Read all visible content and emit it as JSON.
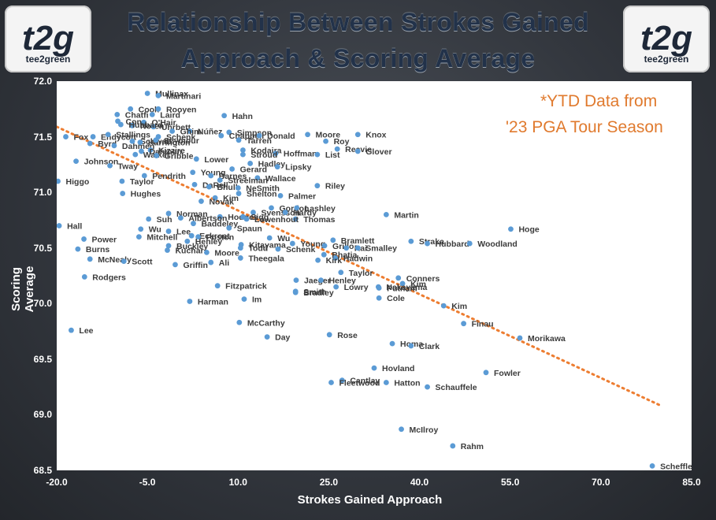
{
  "logo": {
    "mark": "t2g",
    "wordmark": "tee2green"
  },
  "title_line1": "Relationship Between Strokes Gained",
  "title_line2": "Approach & Scoring Average",
  "note_line1": "*YTD Data from",
  "note_line2": "'23 PGA Tour Season",
  "colors": {
    "point": "#5b9bd5",
    "trend": "#ed7d31",
    "note": "#e07a2e",
    "title": "#22324a"
  },
  "chart_data": {
    "type": "scatter",
    "title": "Relationship Between Strokes Gained Approach & Scoring Average",
    "xlabel": "Strokes Gained Approach",
    "ylabel": "Scoring Average",
    "xlim": [
      -20,
      85
    ],
    "ylim": [
      68.5,
      72.0
    ],
    "xticks": [
      "-20.0",
      "-5.0",
      "10.0",
      "25.0",
      "40.0",
      "55.0",
      "70.0",
      "85.0"
    ],
    "xtick_values": [
      -20,
      -5,
      10,
      25,
      40,
      55,
      70,
      85
    ],
    "yticks": [
      "72.0",
      "71.5",
      "71.0",
      "70.5",
      "70.0",
      "69.5",
      "69.0",
      "68.5"
    ],
    "ytick_values": [
      72.0,
      71.5,
      71.0,
      70.5,
      70.0,
      69.5,
      69.0,
      68.5
    ],
    "grid": false,
    "trendline": {
      "style": "dotted",
      "x": [
        -20,
        80
      ],
      "y": [
        71.59,
        69.08
      ]
    },
    "points": [
      {
        "label": "Mullinax",
        "x": -5.0,
        "y": 71.89
      },
      {
        "label": "Martinari",
        "x": -3.2,
        "y": 71.87
      },
      {
        "label": "Cook",
        "x": -7.8,
        "y": 71.75
      },
      {
        "label": "Rooyen",
        "x": -3.2,
        "y": 71.75
      },
      {
        "label": "Chatfi",
        "x": -10.0,
        "y": 71.7
      },
      {
        "label": "Laird",
        "x": -4.2,
        "y": 71.7
      },
      {
        "label": "Cone",
        "x": -9.9,
        "y": 71.64
      },
      {
        "label": "O'Hair",
        "x": -5.6,
        "y": 71.63
      },
      {
        "label": "Noren",
        "x": -7.5,
        "y": 71.6
      },
      {
        "label": "Uhrbett",
        "x": -4.0,
        "y": 71.59
      },
      {
        "label": "Núñez",
        "x": 2.0,
        "y": 71.55
      },
      {
        "label": "Hahn",
        "x": 7.7,
        "y": 71.69
      },
      {
        "label": "Simpson",
        "x": 8.5,
        "y": 71.54
      },
      {
        "label": "Chappell",
        "x": 7.2,
        "y": 71.51
      },
      {
        "label": "Donald",
        "x": 13.5,
        "y": 71.51
      },
      {
        "label": "Moore",
        "x": 21.5,
        "y": 71.52
      },
      {
        "label": "Knox",
        "x": 29.8,
        "y": 71.52
      },
      {
        "label": "Tarren",
        "x": 10.1,
        "y": 71.47
      },
      {
        "label": "Roy",
        "x": 24.5,
        "y": 71.46
      },
      {
        "label": "Reavie",
        "x": 26.4,
        "y": 71.39
      },
      {
        "label": "Kodaira",
        "x": 10.8,
        "y": 71.38
      },
      {
        "label": "Glover",
        "x": 29.8,
        "y": 71.37
      },
      {
        "label": "Hoffman",
        "x": 16.2,
        "y": 71.35
      },
      {
        "label": "List",
        "x": 23.1,
        "y": 71.34
      },
      {
        "label": "Stroud",
        "x": 10.8,
        "y": 71.34
      },
      {
        "label": "Lower",
        "x": 3.1,
        "y": 71.3
      },
      {
        "label": "Hadley",
        "x": 12.0,
        "y": 71.26
      },
      {
        "label": "Lipsky",
        "x": 16.5,
        "y": 71.23
      },
      {
        "label": "Gerard",
        "x": 9.0,
        "y": 71.21
      },
      {
        "label": "Young",
        "x": 2.5,
        "y": 71.18
      },
      {
        "label": "Barnes",
        "x": 5.5,
        "y": 71.15
      },
      {
        "label": "Wallace",
        "x": 13.2,
        "y": 71.13
      },
      {
        "label": "Streelman",
        "x": 7.0,
        "y": 71.11
      },
      {
        "label": "Riley",
        "x": 23.1,
        "y": 71.06
      },
      {
        "label": "DaRell",
        "x": 2.8,
        "y": 71.07
      },
      {
        "label": "Bhull",
        "x": 5.2,
        "y": 71.05
      },
      {
        "label": "NeSmith",
        "x": 10.0,
        "y": 71.04
      },
      {
        "label": "Shelton",
        "x": 10.1,
        "y": 70.99
      },
      {
        "label": "Palmer",
        "x": 17.0,
        "y": 70.97
      },
      {
        "label": "Kim",
        "x": 6.2,
        "y": 70.95
      },
      {
        "label": "Novak",
        "x": 3.9,
        "y": 70.92
      },
      {
        "label": "Gordon",
        "x": 15.5,
        "y": 70.86
      },
      {
        "label": "Lashley",
        "x": 19.7,
        "y": 70.86
      },
      {
        "label": "Svensson",
        "x": 12.5,
        "y": 70.82
      },
      {
        "label": "Hardy",
        "x": 17.8,
        "y": 70.82
      },
      {
        "label": "Martin",
        "x": 34.5,
        "y": 70.8
      },
      {
        "label": "Norman",
        "x": -1.5,
        "y": 70.81
      },
      {
        "label": "Thomas",
        "x": 19.5,
        "y": 70.76
      },
      {
        "label": "Hodges",
        "x": 7.0,
        "y": 70.78
      },
      {
        "label": "Sigg",
        "x": 10.8,
        "y": 70.78
      },
      {
        "label": "Lowenhout",
        "x": 11.4,
        "y": 70.76
      },
      {
        "label": "Suh",
        "x": -4.8,
        "y": 70.76
      },
      {
        "label": "Albertson",
        "x": 0.5,
        "y": 70.77
      },
      {
        "label": "Baddeley",
        "x": 2.6,
        "y": 70.72
      },
      {
        "label": "Spaun",
        "x": 8.5,
        "y": 70.68
      },
      {
        "label": "Hoge",
        "x": 55.1,
        "y": 70.67
      },
      {
        "label": "Wu",
        "x": -6.1,
        "y": 70.67
      },
      {
        "label": "Lee",
        "x": -1.5,
        "y": 70.65
      },
      {
        "label": "Eckroat",
        "x": 2.3,
        "y": 70.61
      },
      {
        "label": "Poston",
        "x": 3.4,
        "y": 70.6
      },
      {
        "label": "Mitchell",
        "x": -6.4,
        "y": 70.6
      },
      {
        "label": "Bramlett",
        "x": 25.7,
        "y": 70.57
      },
      {
        "label": "Straka",
        "x": 38.6,
        "y": 70.56
      },
      {
        "label": "Hubbard",
        "x": 41.3,
        "y": 70.54
      },
      {
        "label": "Woodland",
        "x": 48.3,
        "y": 70.54
      },
      {
        "label": "Power",
        "x": -15.5,
        "y": 70.58
      },
      {
        "label": "Henley",
        "x": 1.6,
        "y": 70.56
      },
      {
        "label": "Wu",
        "x": 15.2,
        "y": 70.59
      },
      {
        "label": "Young",
        "x": 19.0,
        "y": 70.54
      },
      {
        "label": "Kitayama",
        "x": 10.5,
        "y": 70.53
      },
      {
        "label": "Todd",
        "x": 10.4,
        "y": 70.5
      },
      {
        "label": "Buckley",
        "x": -1.5,
        "y": 70.52
      },
      {
        "label": "Grillo",
        "x": 24.3,
        "y": 70.52
      },
      {
        "label": "Rai",
        "x": 27.9,
        "y": 70.5
      },
      {
        "label": "Smalley",
        "x": 29.8,
        "y": 70.5
      },
      {
        "label": "Schenk",
        "x": 16.6,
        "y": 70.49
      },
      {
        "label": "Burns",
        "x": -16.5,
        "y": 70.49
      },
      {
        "label": "Kuchar",
        "x": -1.7,
        "y": 70.48
      },
      {
        "label": "Moore",
        "x": 4.8,
        "y": 70.46
      },
      {
        "label": "Bhatia",
        "x": 24.2,
        "y": 70.44
      },
      {
        "label": "Hadwin",
        "x": 26.1,
        "y": 70.41
      },
      {
        "label": "Theegala",
        "x": 10.4,
        "y": 70.41
      },
      {
        "label": "Kirk",
        "x": 23.2,
        "y": 70.39
      },
      {
        "label": "McNealy",
        "x": -14.5,
        "y": 70.4
      },
      {
        "label": "Scott",
        "x": -8.9,
        "y": 70.38
      },
      {
        "label": "Ali",
        "x": 5.5,
        "y": 70.37
      },
      {
        "label": "Griffin",
        "x": -0.4,
        "y": 70.35
      },
      {
        "label": "Taylor",
        "x": 27.0,
        "y": 70.28
      },
      {
        "label": "Rodgers",
        "x": -15.4,
        "y": 70.24
      },
      {
        "label": "Conners",
        "x": 36.5,
        "y": 70.23
      },
      {
        "label": "Jaeger",
        "x": 19.6,
        "y": 70.21
      },
      {
        "label": "Henley",
        "x": 23.7,
        "y": 70.21
      },
      {
        "label": "Kim",
        "x": 37.2,
        "y": 70.18
      },
      {
        "label": "Nakayama",
        "x": 33.2,
        "y": 70.15
      },
      {
        "label": "Lowry",
        "x": 26.2,
        "y": 70.15
      },
      {
        "label": "Fitzpatrick",
        "x": 6.6,
        "y": 70.16
      },
      {
        "label": "Putnam",
        "x": 33.3,
        "y": 70.14
      },
      {
        "label": "Smith",
        "x": 19.5,
        "y": 70.11
      },
      {
        "label": "Bradley",
        "x": 19.5,
        "y": 70.1
      },
      {
        "label": "Cole",
        "x": 33.3,
        "y": 70.05
      },
      {
        "label": "Im",
        "x": 11.0,
        "y": 70.04
      },
      {
        "label": "Harman",
        "x": 2.0,
        "y": 70.02
      },
      {
        "label": "Kim",
        "x": 44.0,
        "y": 69.98
      },
      {
        "label": "McCarthy",
        "x": 10.2,
        "y": 69.83
      },
      {
        "label": "Finau",
        "x": 47.3,
        "y": 69.82
      },
      {
        "label": "Lee",
        "x": -17.6,
        "y": 69.76
      },
      {
        "label": "Rose",
        "x": 25.1,
        "y": 69.72
      },
      {
        "label": "Day",
        "x": 14.8,
        "y": 69.7
      },
      {
        "label": "Morikawa",
        "x": 56.6,
        "y": 69.69
      },
      {
        "label": "Homa",
        "x": 35.5,
        "y": 69.64
      },
      {
        "label": "Clark",
        "x": 38.6,
        "y": 69.62
      },
      {
        "label": "Hovland",
        "x": 32.5,
        "y": 69.42
      },
      {
        "label": "Fowler",
        "x": 51.0,
        "y": 69.38
      },
      {
        "label": "Cantlay",
        "x": 27.2,
        "y": 69.31
      },
      {
        "label": "Fleetwood",
        "x": 25.4,
        "y": 69.29
      },
      {
        "label": "Hatton",
        "x": 34.5,
        "y": 69.29
      },
      {
        "label": "Schauffele",
        "x": 41.3,
        "y": 69.25
      },
      {
        "label": "McIlroy",
        "x": 37.0,
        "y": 68.87
      },
      {
        "label": "Rahm",
        "x": 45.5,
        "y": 68.72
      },
      {
        "label": "Scheffler",
        "x": 78.5,
        "y": 68.54
      },
      {
        "label": "Higgo",
        "x": -19.8,
        "y": 71.1
      },
      {
        "label": "Johnson",
        "x": -16.8,
        "y": 71.28
      },
      {
        "label": "Tway",
        "x": -11.2,
        "y": 71.24
      },
      {
        "label": "Taylor",
        "x": -9.2,
        "y": 71.1
      },
      {
        "label": "Hughes",
        "x": -9.1,
        "y": 70.99
      },
      {
        "label": "Pendrith",
        "x": -5.5,
        "y": 71.15
      },
      {
        "label": "Hall",
        "x": -19.6,
        "y": 70.7
      },
      {
        "label": "Fox",
        "x": -18.5,
        "y": 71.5
      },
      {
        "label": "Endycott",
        "x": -14.0,
        "y": 71.5
      },
      {
        "label": "Byrd",
        "x": -14.5,
        "y": 71.44
      },
      {
        "label": "Stallings",
        "x": -11.5,
        "y": 71.52
      },
      {
        "label": "Dahmen",
        "x": -10.5,
        "y": 71.42
      },
      {
        "label": "Schwab",
        "x": -7.5,
        "y": 71.46
      },
      {
        "label": "Harrington",
        "x": -6.2,
        "y": 71.45
      },
      {
        "label": "Seymour",
        "x": -3.6,
        "y": 71.47
      },
      {
        "label": "Kizzire",
        "x": -4.5,
        "y": 71.38
      },
      {
        "label": "Walker",
        "x": -7.0,
        "y": 71.34
      },
      {
        "label": "Dahmen",
        "x": -6.0,
        "y": 71.37
      },
      {
        "label": "Gribble",
        "x": -3.5,
        "y": 71.33
      },
      {
        "label": "Hubbard",
        "x": -9.4,
        "y": 71.61
      },
      {
        "label": "Ghim",
        "x": -0.9,
        "y": 71.55
      },
      {
        "label": "Schenk",
        "x": -3.2,
        "y": 71.5
      }
    ]
  }
}
